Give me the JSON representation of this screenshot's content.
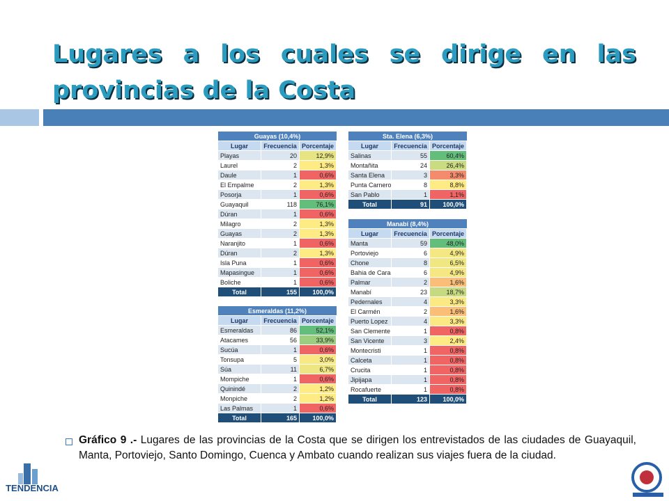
{
  "title": "Lugares a los cuales se dirige en las provincias de la Costa",
  "tables": [
    {
      "title": "Guayas (10,4%)",
      "headers": [
        "Lugar",
        "Frecuencia",
        "Porcentaje"
      ],
      "rows": [
        [
          "Playas",
          20,
          "12,9%"
        ],
        [
          "Laurel",
          2,
          "1,3%"
        ],
        [
          "Daule",
          1,
          "0,6%"
        ],
        [
          "El Empalme",
          2,
          "1,3%"
        ],
        [
          "Posorja",
          1,
          "0,6%"
        ],
        [
          "Guayaquil",
          118,
          "76,1%"
        ],
        [
          "Dúran",
          1,
          "0,6%"
        ],
        [
          "Milagro",
          2,
          "1,3%"
        ],
        [
          "Guayas",
          2,
          "1,3%"
        ],
        [
          "Naranjito",
          1,
          "0,6%"
        ],
        [
          "Dúran",
          2,
          "1,3%"
        ],
        [
          "Isla Puna",
          1,
          "0,6%"
        ],
        [
          "Mapasingue",
          1,
          "0,6%"
        ],
        [
          "Boliche",
          1,
          "0,6%"
        ]
      ],
      "total": [
        "Total",
        155,
        "100,0%"
      ]
    },
    {
      "title": "Sta. Elena (6,3%)",
      "headers": [
        "Lugar",
        "Frecuencia",
        "Porcentaje"
      ],
      "rows": [
        [
          "Salinas",
          55,
          "60,4%"
        ],
        [
          "Montañita",
          24,
          "26,4%"
        ],
        [
          "Santa Elena",
          3,
          "3,3%"
        ],
        [
          "Punta Carnero",
          8,
          "8,8%"
        ],
        [
          "San Pablo",
          1,
          "1,1%"
        ]
      ],
      "total": [
        "Total",
        91,
        "100,0%"
      ]
    },
    {
      "title": "Manabí (8,4%)",
      "headers": [
        "Lugar",
        "Frecuencia",
        "Porcentaje"
      ],
      "rows": [
        [
          "Manta",
          59,
          "48,0%"
        ],
        [
          "Portoviejo",
          6,
          "4,9%"
        ],
        [
          "Chone",
          8,
          "6,5%"
        ],
        [
          "Bahia de Caraqu",
          6,
          "4,9%"
        ],
        [
          "Palmar",
          2,
          "1,6%"
        ],
        [
          "Manabí",
          23,
          "18,7%"
        ],
        [
          "Pedernales",
          4,
          "3,3%"
        ],
        [
          "El Carmén",
          2,
          "1,6%"
        ],
        [
          "Puerto Lopez",
          4,
          "3,3%"
        ],
        [
          "San Clemente",
          1,
          "0,8%"
        ],
        [
          "San Vicente",
          3,
          "2,4%"
        ],
        [
          "Montecristi",
          1,
          "0,8%"
        ],
        [
          "Calceta",
          1,
          "0,8%"
        ],
        [
          "Crucita",
          1,
          "0,8%"
        ],
        [
          "Jipijapa",
          1,
          "0,8%"
        ],
        [
          "Rocafuerte",
          1,
          "0,8%"
        ]
      ],
      "total": [
        "Total",
        123,
        "100,0%"
      ]
    },
    {
      "title": "Esmeraldas (11,2%)",
      "headers": [
        "Lugar",
        "Frecuencia",
        "Porcentaje"
      ],
      "rows": [
        [
          "Esmeraldas",
          86,
          "52,1%"
        ],
        [
          "Atacames",
          56,
          "33,9%"
        ],
        [
          "Sucúa",
          1,
          "0,6%"
        ],
        [
          "Tonsupa",
          5,
          "3,0%"
        ],
        [
          "Súa",
          11,
          "6,7%"
        ],
        [
          "Mompiche",
          1,
          "0,6%"
        ],
        [
          "Quinindé",
          2,
          "1,2%"
        ],
        [
          "Monpiche",
          2,
          "1,2%"
        ],
        [
          "Las Palmas",
          1,
          "0,6%"
        ]
      ],
      "total": [
        "Total",
        165,
        "100,0%"
      ]
    }
  ],
  "caption": {
    "label": "Gráfico 9 .-",
    "text": "Lugares de las provincias de la Costa que se dirigen los entrevistados de las ciudades de Guayaquil, Manta, Portoviejo, Santo Domingo, Cuenca y Ambato cuando realizan sus viajes fuera de la ciudad."
  },
  "logo": "TENDENCIA"
}
